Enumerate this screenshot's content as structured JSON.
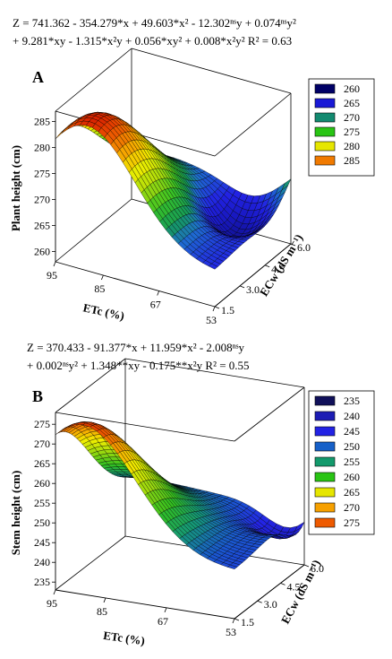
{
  "chart_data": [
    {
      "type": "surface3d",
      "panel_label": "A",
      "equation_line1": "Z = 741.362 - 354.279*x + 49.603*x² - 12.302ⁿˢy + 0.074ⁿˢy²",
      "equation_line2": "+ 9.281*xy - 1.315*x²y + 0.056*xy² + 0.008*x²y² R² = 0.63",
      "zlabel": "Plant height (cm)",
      "xlabel": "ETc (%)",
      "ylabel": "ECw (dS m⁻¹)",
      "x_ticks": [
        "95",
        "85",
        "67",
        "53"
      ],
      "y_ticks": [
        "1.5",
        "3.0",
        "4.5",
        "6.0"
      ],
      "z_ticks": [
        "260",
        "265",
        "270",
        "275",
        "280",
        "285"
      ],
      "zlim": [
        258,
        287
      ],
      "legend": [
        "260",
        "265",
        "270",
        "275",
        "280",
        "285"
      ],
      "legend_colors": [
        "#000066",
        "#1a1ad6",
        "#138a70",
        "#29c414",
        "#e6e600",
        "#f07a00"
      ],
      "surface_colors": [
        [
          258,
          "#0b0b5a"
        ],
        [
          262,
          "#1616b8"
        ],
        [
          265,
          "#2222e4"
        ],
        [
          268,
          "#1e6fd0"
        ],
        [
          270,
          "#149a5a"
        ],
        [
          273,
          "#38c424"
        ],
        [
          276,
          "#a8dc0c"
        ],
        [
          279,
          "#f2ee00"
        ],
        [
          282,
          "#f6a000"
        ],
        [
          285,
          "#ea4800"
        ],
        [
          287,
          "#d01000"
        ]
      ],
      "surface_shape": {
        "base": 264.6,
        "peak_x": 0.8,
        "peak_y": 0.1,
        "peak_height": 21.8,
        "dip_x": 0.22,
        "dip_y": 0.75,
        "dip_depth": 6.9,
        "far_rise": 7
      }
    },
    {
      "type": "surface3d",
      "panel_label": "B",
      "equation_line1": "Z = 370.433 - 91.377*x + 11.959*x² - 2.008ⁿˢy",
      "equation_line2": "+ 0.002ⁿˢy² + 1.348**xy - 0.175**x²y R² = 0.55",
      "zlabel": "Stem height (cm)",
      "xlabel": "ETc (%)",
      "ylabel": "ECw (dS m⁻¹)",
      "x_ticks": [
        "95",
        "85",
        "67",
        "53"
      ],
      "y_ticks": [
        "1.5",
        "3.0",
        "4.5",
        "6.0"
      ],
      "z_ticks": [
        "235",
        "240",
        "245",
        "250",
        "255",
        "260",
        "265",
        "270",
        "275"
      ],
      "zlim": [
        233,
        278
      ],
      "legend": [
        "235",
        "240",
        "245",
        "250",
        "255",
        "260",
        "265",
        "270",
        "275"
      ],
      "legend_colors": [
        "#10105a",
        "#1c1cb4",
        "#2222e4",
        "#1660c8",
        "#139a6c",
        "#29c414",
        "#e6e600",
        "#f6a000",
        "#ee5a00"
      ],
      "surface_colors": [
        [
          233,
          "#180c50"
        ],
        [
          238,
          "#1c1ca8"
        ],
        [
          243,
          "#2424e6"
        ],
        [
          247,
          "#1a58d0"
        ],
        [
          251,
          "#149878"
        ],
        [
          256,
          "#30c020"
        ],
        [
          262,
          "#a8dc0c"
        ],
        [
          266,
          "#f2ee00"
        ],
        [
          270,
          "#f6a800"
        ],
        [
          274,
          "#ee5800"
        ],
        [
          278,
          "#d01800"
        ]
      ],
      "surface_shape": {
        "base": 245,
        "peak_x": 0.85,
        "peak_y": 0.0,
        "peak_height": 31,
        "dip_x": 0.05,
        "dip_y": 0.95,
        "dip_depth": 10,
        "far_rise": 8
      }
    }
  ]
}
